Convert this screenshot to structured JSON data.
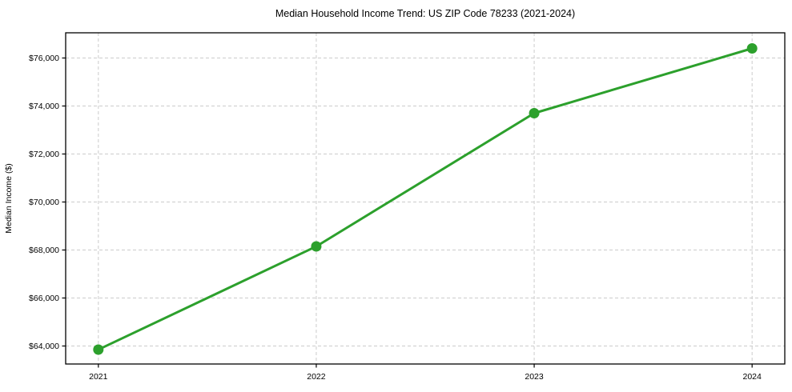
{
  "figure": {
    "background": "#ffffff",
    "text_color": "#000000"
  },
  "chart_data": {
    "type": "line",
    "title": "Median Household Income Trend: US ZIP Code 78233 (2021-2024)",
    "xlabel": "",
    "ylabel": "Median Income ($)",
    "x": [
      2021,
      2022,
      2023,
      2024
    ],
    "series": [
      {
        "name": "Median Household Income",
        "values": [
          63850,
          68150,
          73700,
          76400
        ],
        "color": "#2ca02c",
        "marker": "circle",
        "marker_size": 13,
        "line_width": 3
      }
    ],
    "xticks": {
      "values": [
        2021,
        2022,
        2023,
        2024
      ],
      "labels": [
        "2021",
        "2022",
        "2023",
        "2024"
      ]
    },
    "yticks": {
      "values": [
        64000,
        66000,
        68000,
        70000,
        72000,
        74000,
        76000
      ],
      "labels": [
        "$64,000",
        "$66,000",
        "$68,000",
        "$70,000",
        "$72,000",
        "$74,000",
        "$76,000"
      ]
    },
    "xlim": [
      2020.85,
      2024.15
    ],
    "ylim": [
      63250,
      77050
    ],
    "grid": true,
    "grid_color": "#cccccc",
    "grid_dash": "4 3",
    "legend": "none",
    "axis_color": "#000000"
  }
}
